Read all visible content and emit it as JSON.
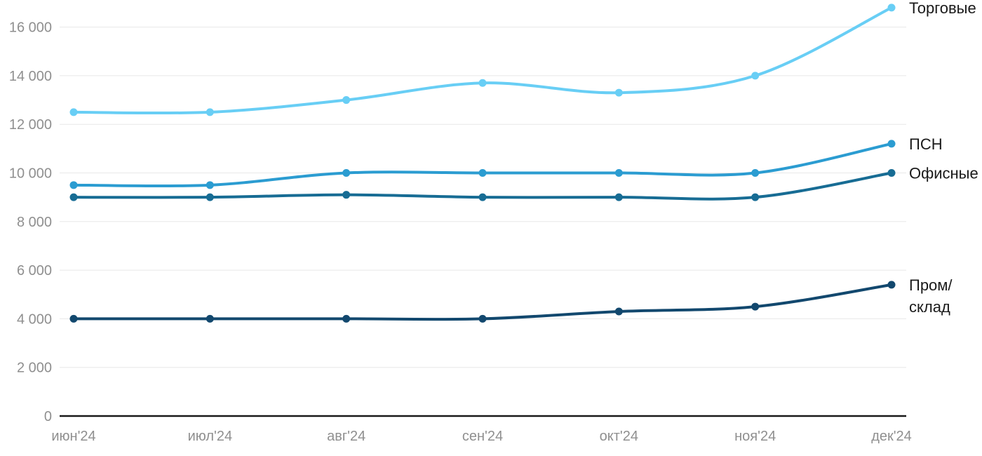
{
  "chart_data": {
    "type": "line",
    "title": "",
    "xlabel": "",
    "ylabel": "",
    "categories": [
      "июн'24",
      "июл'24",
      "авг'24",
      "сен'24",
      "окт'24",
      "ноя'24",
      "дек'24"
    ],
    "series": [
      {
        "name": "Торговые",
        "color": "#68cef5",
        "values": [
          12500,
          12500,
          13000,
          13700,
          13300,
          14000,
          16800
        ],
        "label_lines": [
          "Торговые"
        ]
      },
      {
        "name": "ПСН",
        "color": "#2b9cd1",
        "values": [
          9500,
          9500,
          10000,
          10000,
          10000,
          10000,
          11200
        ],
        "label_lines": [
          "ПСН"
        ]
      },
      {
        "name": "Офисные",
        "color": "#176c94",
        "values": [
          9000,
          9000,
          9100,
          9000,
          9000,
          9000,
          10000
        ],
        "label_lines": [
          "Офисные"
        ]
      },
      {
        "name": "Пром/склад",
        "color": "#12486e",
        "values": [
          4000,
          4000,
          4000,
          4000,
          4300,
          4500,
          5400
        ],
        "label_lines": [
          "Пром/",
          "склад"
        ]
      }
    ],
    "y_ticks": [
      0,
      2000,
      4000,
      6000,
      8000,
      10000,
      12000,
      14000,
      16000
    ],
    "y_tick_labels": [
      "0",
      "2 000",
      "4 000",
      "6 000",
      "8 000",
      "10 000",
      "12 000",
      "14 000",
      "16 000"
    ],
    "ylim": [
      0,
      17000
    ],
    "grid": true,
    "legend_position": "end-of-line",
    "colors": {
      "grid": "#e8e8e8",
      "axis": "#1a1a1a",
      "tick_labels": "#8f8f8f",
      "series_labels": "#1a1a1a",
      "background": "#ffffff"
    }
  }
}
